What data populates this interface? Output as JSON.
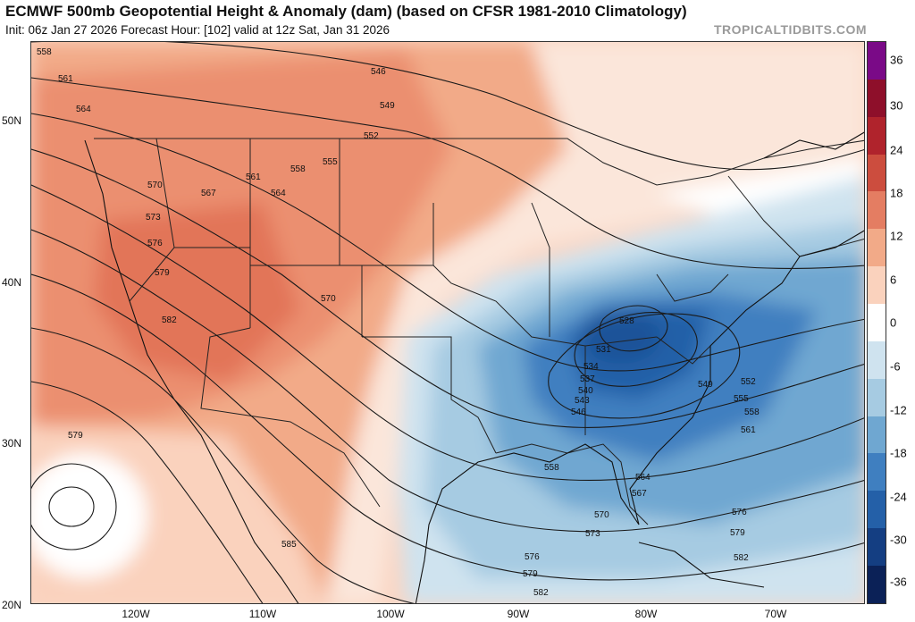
{
  "header": {
    "title": "ECMWF 500mb Geopotential Height & Anomaly (dam) (based on CFSR 1981-2010 Climatology)",
    "subtitle": "Init: 06z Jan 27 2026   Forecast Hour: [102]   valid at 12z Sat, Jan 31 2026",
    "brand": "TROPICALTIDBITS.COM"
  },
  "axes": {
    "lat_labels": [
      "50N",
      "40N",
      "30N",
      "20N"
    ],
    "lon_labels": [
      "120W",
      "110W",
      "100W",
      "90W",
      "80W",
      "70W"
    ]
  },
  "colorbar": {
    "labels": [
      "36",
      "30",
      "24",
      "18",
      "12",
      "6",
      "0",
      "-6",
      "-12",
      "-18",
      "-24",
      "-30",
      "-36"
    ],
    "colors": [
      "#7a0a87",
      "#8e0f2a",
      "#b0232c",
      "#cc4d3e",
      "#e47d62",
      "#f2aa88",
      "#fad2bd",
      "#ffffff",
      "#cfe3ef",
      "#a6cbe2",
      "#6fa7d1",
      "#3f7fc0",
      "#2460a8",
      "#143e82",
      "#0b2157"
    ]
  },
  "contours": {
    "labels": [
      "558",
      "561",
      "564",
      "546",
      "549",
      "552",
      "555",
      "558",
      "561",
      "567",
      "564",
      "570",
      "573",
      "576",
      "579",
      "582",
      "570",
      "528",
      "531",
      "534",
      "537",
      "540",
      "543",
      "546",
      "549",
      "552",
      "555",
      "558",
      "561",
      "558",
      "564",
      "567",
      "570",
      "573",
      "576",
      "579",
      "582",
      "576",
      "579",
      "582",
      "585",
      "579"
    ]
  }
}
